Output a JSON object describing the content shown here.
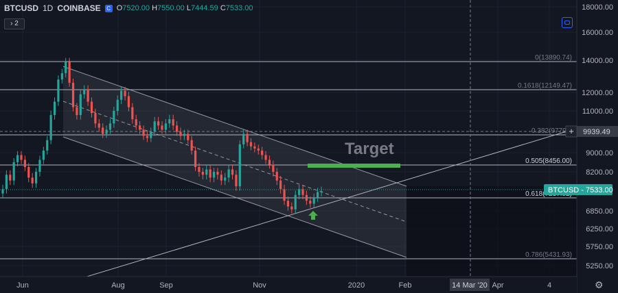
{
  "header": {
    "symbol": "BTCUSD",
    "interval": "1D",
    "exchange": "COINBASE",
    "open_label": "O",
    "open": "7520.00",
    "high_label": "H",
    "high": "7550.00",
    "low_label": "L",
    "low": "7444.59",
    "close_label": "C",
    "close": "7533.00",
    "studies_toggle": "› 2"
  },
  "colors": {
    "background": "#131722",
    "grid": "#1e222d",
    "up": "#26a69a",
    "down": "#ef5350",
    "target_bar": "#4caf50",
    "arrow": "#4caf50",
    "channel_fill": "#3a3e4a",
    "price_label_bg": "#26a69a",
    "axis_text": "#b2b5be",
    "annotation": "#787b86"
  },
  "icons": {
    "sync": "sync-icon",
    "settings": "gear-icon",
    "arrow": "arrow-up-icon"
  },
  "chart_data": {
    "type": "candlestick",
    "ylim": [
      4900,
      18600
    ],
    "y_ticks": [
      {
        "value": 18000,
        "label": "18000.00"
      },
      {
        "value": 16000,
        "label": "16000.00"
      },
      {
        "value": 14000,
        "label": "14000.00"
      },
      {
        "value": 12000,
        "label": "12000.00"
      },
      {
        "value": 11000,
        "label": "11000.00"
      },
      {
        "value": 9000,
        "label": "9000.00"
      },
      {
        "value": 8200,
        "label": "8200.00"
      },
      {
        "value": 6850,
        "label": "6850.00"
      },
      {
        "value": 6250,
        "label": "6250.00"
      },
      {
        "value": 5750,
        "label": "5750.00"
      },
      {
        "value": 5250,
        "label": "5250.00"
      }
    ],
    "x_ticks": [
      "Jun",
      "Aug",
      "Sep",
      "Nov",
      "2020",
      "Feb",
      "Apr",
      "4"
    ],
    "crosshair_date": "14 Mar '20",
    "crosshair_price": "9939.49",
    "last_price": {
      "symbol": "BTCUSD",
      "value": "7533.00"
    },
    "target_text": "Target",
    "fib_levels": [
      {
        "ratio": "0",
        "value": "13890.74",
        "text": "0(13890.74)"
      },
      {
        "ratio": "0.1618",
        "value": "12149.47",
        "text": "0.1618(12149.47)"
      },
      {
        "ratio": "0.382",
        "value": "9779.7",
        "text": "0.382(9779.7"
      },
      {
        "ratio": "0.505",
        "value": "8456.00",
        "text": "0.505(8456.00)"
      },
      {
        "ratio": "0.618",
        "value": "7237.92",
        "text": "0.618(7237.92)"
      },
      {
        "ratio": "0.786",
        "value": "5431.93",
        "text": "0.786(5431.93)"
      }
    ],
    "candles_close": [
      7600,
      8100,
      7900,
      8600,
      8900,
      8700,
      8400,
      8000,
      7800,
      8200,
      8700,
      9100,
      9600,
      10800,
      11500,
      12800,
      13200,
      13890,
      12600,
      11200,
      10800,
      11900,
      12200,
      11500,
      10900,
      10400,
      10200,
      9900,
      10100,
      10400,
      11000,
      11600,
      12100,
      11800,
      11200,
      10600,
      10300,
      10100,
      9800,
      9700,
      10000,
      10500,
      10300,
      10100,
      10400,
      10600,
      10300,
      10000,
      9800,
      9900,
      9600,
      9100,
      8400,
      8200,
      8100,
      8300,
      8000,
      8200,
      8100,
      7900,
      8000,
      8300,
      8100,
      7700,
      9400,
      9900,
      9500,
      9300,
      9200,
      9100,
      8900,
      8700,
      8500,
      8200,
      7900,
      7600,
      7200,
      7000,
      6900,
      7400,
      7600,
      7400,
      7200,
      7100,
      7300,
      7500,
      7533
    ]
  }
}
